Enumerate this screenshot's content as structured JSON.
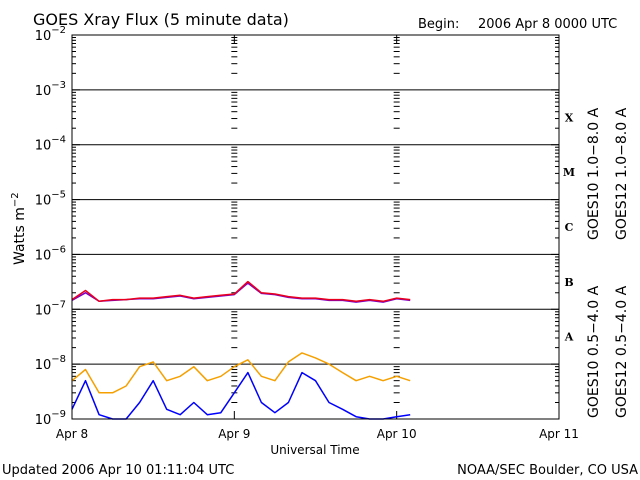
{
  "header": {
    "title": "GOES Xray Flux (5 minute data)",
    "begin_label": "Begin:",
    "begin_value": "2006 Apr 8 0000 UTC"
  },
  "footer": {
    "updated": "Updated 2006 Apr 10 01:11:04 UTC",
    "credit": "NOAA/SEC Boulder, CO USA"
  },
  "colors": {
    "goes10_long": "#7a00c8",
    "goes12_long": "#e8001e",
    "goes10_short": "#f5a000",
    "goes12_short": "#0000ff",
    "background": "#ffffff",
    "axes": "#000000"
  },
  "chart_data": {
    "type": "line",
    "title": "GOES Xray Flux (5 minute data)",
    "xlabel": "Universal Time",
    "ylabel": "Watts m",
    "ylabel_superscript": "−2",
    "yscale": "log",
    "ylim": [
      1e-09,
      0.01
    ],
    "xlim_days": [
      0,
      3
    ],
    "x_tick_labels": [
      "Apr 8",
      "Apr 9",
      "Apr 10",
      "Apr 11"
    ],
    "y_ticks": [
      {
        "base": "10",
        "exp": "−2",
        "value": 0.01
      },
      {
        "base": "10",
        "exp": "−3",
        "value": 0.001
      },
      {
        "base": "10",
        "exp": "−4",
        "value": 0.0001
      },
      {
        "base": "10",
        "exp": "−5",
        "value": 1e-05
      },
      {
        "base": "10",
        "exp": "−6",
        "value": 1e-06
      },
      {
        "base": "10",
        "exp": "−7",
        "value": 1e-07
      },
      {
        "base": "10",
        "exp": "−8",
        "value": 1e-08
      },
      {
        "base": "10",
        "exp": "−9",
        "value": 1e-09
      }
    ],
    "flare_classes": [
      {
        "label": "X",
        "log_low": -4
      },
      {
        "label": "M",
        "log_low": -5
      },
      {
        "label": "C",
        "log_low": -6
      },
      {
        "label": "B",
        "log_low": -7
      },
      {
        "label": "A",
        "log_low": -8
      }
    ],
    "grid": "horizontal at each decade",
    "legend_placement": "right, rotated",
    "legend": [
      {
        "text": "GOES10 1.0−8.0 A",
        "color": "#7a00c8"
      },
      {
        "text": "GOES12 1.0−8.0 A",
        "color": "#e8001e"
      },
      {
        "text": "GOES10 0.5−4.0 A",
        "color": "#f5a000"
      },
      {
        "text": "GOES12 0.5−4.0 A",
        "color": "#0000ff"
      }
    ],
    "series": [
      {
        "name": "GOES12 1.0−8.0 A",
        "color": "#e8001e",
        "x_hours": [
          0,
          2,
          4,
          6,
          8,
          10,
          12,
          14,
          16,
          18,
          20,
          22,
          24,
          26,
          28,
          30,
          32,
          34,
          36,
          38,
          40,
          42,
          44,
          46,
          48,
          50
        ],
        "values": [
          1.5e-07,
          2.2e-07,
          1.4e-07,
          1.5e-07,
          1.5e-07,
          1.6e-07,
          1.6e-07,
          1.7e-07,
          1.8e-07,
          1.6e-07,
          1.7e-07,
          1.8e-07,
          1.9e-07,
          3.2e-07,
          2e-07,
          1.9e-07,
          1.7e-07,
          1.6e-07,
          1.6e-07,
          1.5e-07,
          1.5e-07,
          1.4e-07,
          1.5e-07,
          1.4e-07,
          1.6e-07,
          1.5e-07
        ]
      },
      {
        "name": "GOES10 1.0−8.0 A",
        "color": "#7a00c8",
        "x_hours": [
          0,
          2,
          4,
          6,
          8,
          10,
          12,
          14,
          16,
          18,
          20,
          22,
          24,
          26,
          28,
          30,
          32,
          34,
          36,
          38,
          40,
          42,
          44,
          46,
          48,
          50
        ],
        "values": [
          1.45e-07,
          2e-07,
          1.4e-07,
          1.45e-07,
          1.5e-07,
          1.55e-07,
          1.55e-07,
          1.65e-07,
          1.75e-07,
          1.55e-07,
          1.65e-07,
          1.75e-07,
          1.85e-07,
          3e-07,
          1.95e-07,
          1.85e-07,
          1.65e-07,
          1.55e-07,
          1.55e-07,
          1.45e-07,
          1.45e-07,
          1.35e-07,
          1.45e-07,
          1.35e-07,
          1.55e-07,
          1.45e-07
        ]
      },
      {
        "name": "GOES10 0.5−4.0 A",
        "color": "#f5a000",
        "x_hours": [
          0,
          2,
          4,
          6,
          8,
          10,
          12,
          14,
          16,
          18,
          20,
          22,
          24,
          26,
          28,
          30,
          32,
          34,
          36,
          38,
          40,
          42,
          44,
          46,
          48,
          50
        ],
        "values": [
          5e-09,
          8e-09,
          3e-09,
          3e-09,
          4e-09,
          9e-09,
          1.1e-08,
          5e-09,
          6e-09,
          9e-09,
          5e-09,
          6e-09,
          9e-09,
          1.2e-08,
          6e-09,
          5e-09,
          1.1e-08,
          1.6e-08,
          1.3e-08,
          1e-08,
          7e-09,
          5e-09,
          6e-09,
          5e-09,
          6e-09,
          5e-09
        ]
      },
      {
        "name": "GOES12 0.5−4.0 A",
        "color": "#0000ff",
        "x_hours": [
          0,
          2,
          4,
          6,
          8,
          10,
          12,
          14,
          16,
          18,
          20,
          22,
          24,
          26,
          28,
          30,
          32,
          34,
          36,
          38,
          40,
          42,
          44,
          46,
          48,
          50
        ],
        "values": [
          1.5e-09,
          5e-09,
          1.2e-09,
          1e-09,
          1e-09,
          2e-09,
          5e-09,
          1.5e-09,
          1.2e-09,
          2e-09,
          1.2e-09,
          1.3e-09,
          3e-09,
          7e-09,
          2e-09,
          1.3e-09,
          2e-09,
          7e-09,
          5e-09,
          2e-09,
          1.5e-09,
          1.1e-09,
          1e-09,
          1e-09,
          1.1e-09,
          1.2e-09
        ]
      }
    ]
  }
}
